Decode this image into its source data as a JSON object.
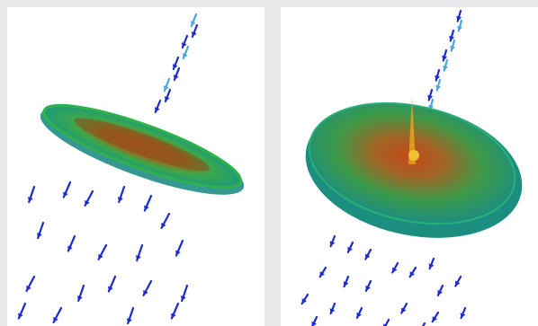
{
  "figure": {
    "panels": [
      {
        "id": "left",
        "disc": "elliptic-plate-tilted",
        "flow": "downward-vectors"
      },
      {
        "id": "right",
        "disc": "circular-dish-tilted",
        "flow": "downward-vectors"
      }
    ],
    "colors": {
      "background": "#e9eaec",
      "panel": "#ffffff",
      "vector": "#1a2bd0",
      "vector_light": "#4aa8e0",
      "disc_outer": "#1f9a78",
      "disc_mid": "#3aa84a",
      "disc_core": "#b5541a",
      "disc_hot": "#e2a020"
    }
  }
}
